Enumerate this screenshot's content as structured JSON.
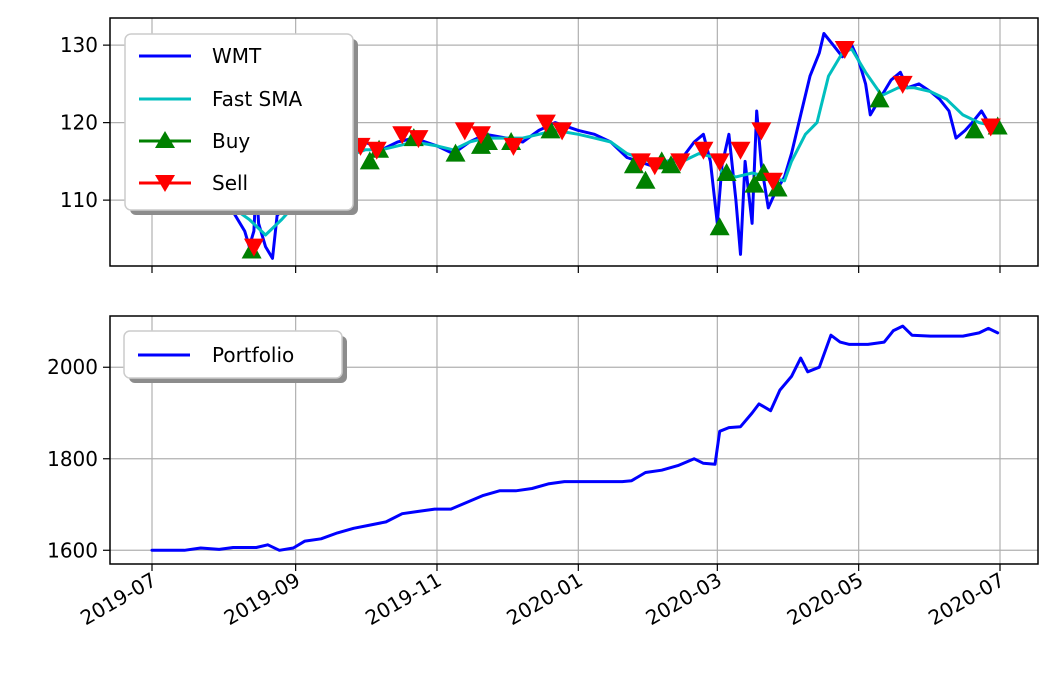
{
  "chart_data": [
    {
      "type": "line",
      "title": "",
      "xlabel": "",
      "ylabel": "",
      "ylim": [
        101.5,
        133.5
      ],
      "yticks": [
        110,
        120,
        130
      ],
      "grid": true,
      "legend_placement": "upper-left",
      "series": [
        {
          "name": "WMT",
          "color": "#0000ff",
          "points": [
            [
              "2019-07-01",
              108.5
            ],
            [
              "2019-07-08",
              110.5
            ],
            [
              "2019-07-15",
              112.0
            ],
            [
              "2019-07-22",
              112.5
            ],
            [
              "2019-07-29",
              111.0
            ],
            [
              "2019-08-05",
              108.5
            ],
            [
              "2019-08-10",
              106.0
            ],
            [
              "2019-08-12",
              104.0
            ],
            [
              "2019-08-14",
              106.0
            ],
            [
              "2019-08-15",
              112.5
            ],
            [
              "2019-08-16",
              107.0
            ],
            [
              "2019-08-19",
              104.0
            ],
            [
              "2019-08-22",
              102.5
            ],
            [
              "2019-08-24",
              108.0
            ],
            [
              "2019-08-27",
              109.0
            ],
            [
              "2019-09-01",
              111.0
            ],
            [
              "2019-09-08",
              113.5
            ],
            [
              "2019-09-15",
              115.5
            ],
            [
              "2019-09-22",
              116.5
            ],
            [
              "2019-10-01",
              117.5
            ],
            [
              "2019-10-08",
              116.5
            ],
            [
              "2019-10-15",
              117.5
            ],
            [
              "2019-10-22",
              118.0
            ],
            [
              "2019-11-01",
              117.0
            ],
            [
              "2019-11-08",
              116.0
            ],
            [
              "2019-11-15",
              117.5
            ],
            [
              "2019-11-22",
              118.5
            ],
            [
              "2019-12-01",
              118.0
            ],
            [
              "2019-12-08",
              117.5
            ],
            [
              "2019-12-15",
              119.0
            ],
            [
              "2019-12-22",
              120.0
            ],
            [
              "2020-01-01",
              119.0
            ],
            [
              "2020-01-08",
              118.5
            ],
            [
              "2020-01-15",
              117.5
            ],
            [
              "2020-01-22",
              115.5
            ],
            [
              "2020-02-01",
              114.5
            ],
            [
              "2020-02-08",
              115.0
            ],
            [
              "2020-02-15",
              115.5
            ],
            [
              "2020-02-20",
              117.5
            ],
            [
              "2020-02-24",
              118.5
            ],
            [
              "2020-02-27",
              115.0
            ],
            [
              "2020-03-01",
              107.0
            ],
            [
              "2020-03-03",
              114.5
            ],
            [
              "2020-03-06",
              118.5
            ],
            [
              "2020-03-09",
              110.0
            ],
            [
              "2020-03-11",
              103.0
            ],
            [
              "2020-03-13",
              115.0
            ],
            [
              "2020-03-16",
              107.0
            ],
            [
              "2020-03-18",
              121.5
            ],
            [
              "2020-03-20",
              114.5
            ],
            [
              "2020-03-23",
              109.0
            ],
            [
              "2020-03-26",
              111.0
            ],
            [
              "2020-03-30",
              113.0
            ],
            [
              "2020-04-02",
              116.0
            ],
            [
              "2020-04-06",
              121.0
            ],
            [
              "2020-04-10",
              126.0
            ],
            [
              "2020-04-14",
              129.0
            ],
            [
              "2020-04-16",
              131.5
            ],
            [
              "2020-04-20",
              130.0
            ],
            [
              "2020-04-24",
              128.5
            ],
            [
              "2020-04-28",
              130.0
            ],
            [
              "2020-05-01",
              128.0
            ],
            [
              "2020-05-04",
              125.0
            ],
            [
              "2020-05-06",
              121.0
            ],
            [
              "2020-05-11",
              123.5
            ],
            [
              "2020-05-15",
              125.5
            ],
            [
              "2020-05-19",
              126.5
            ],
            [
              "2020-05-22",
              124.5
            ],
            [
              "2020-05-27",
              125.0
            ],
            [
              "2020-06-01",
              124.0
            ],
            [
              "2020-06-05",
              123.0
            ],
            [
              "2020-06-09",
              121.5
            ],
            [
              "2020-06-12",
              118.0
            ],
            [
              "2020-06-16",
              119.0
            ],
            [
              "2020-06-19",
              120.0
            ],
            [
              "2020-06-23",
              121.5
            ],
            [
              "2020-06-26",
              120.0
            ],
            [
              "2020-06-30",
              119.5
            ]
          ]
        },
        {
          "name": "Fast SMA",
          "color": "#00bfbf",
          "points": [
            [
              "2019-07-01",
              110.0
            ],
            [
              "2019-07-15",
              111.0
            ],
            [
              "2019-07-29",
              110.5
            ],
            [
              "2019-08-05",
              109.0
            ],
            [
              "2019-08-12",
              107.5
            ],
            [
              "2019-08-19",
              105.5
            ],
            [
              "2019-08-26",
              107.5
            ],
            [
              "2019-09-01",
              109.5
            ],
            [
              "2019-09-08",
              112.5
            ],
            [
              "2019-09-15",
              114.5
            ],
            [
              "2019-09-22",
              115.5
            ],
            [
              "2019-10-01",
              116.5
            ],
            [
              "2019-10-08",
              116.5
            ],
            [
              "2019-10-15",
              117.0
            ],
            [
              "2019-10-22",
              117.5
            ],
            [
              "2019-11-01",
              117.0
            ],
            [
              "2019-11-08",
              116.5
            ],
            [
              "2019-11-15",
              117.5
            ],
            [
              "2019-11-22",
              118.0
            ],
            [
              "2019-12-01",
              118.0
            ],
            [
              "2019-12-08",
              118.0
            ],
            [
              "2019-12-15",
              118.5
            ],
            [
              "2019-12-22",
              119.0
            ],
            [
              "2020-01-01",
              118.5
            ],
            [
              "2020-01-08",
              118.0
            ],
            [
              "2020-01-15",
              117.5
            ],
            [
              "2020-01-22",
              116.0
            ],
            [
              "2020-02-01",
              115.0
            ],
            [
              "2020-02-08",
              115.0
            ],
            [
              "2020-02-15",
              115.0
            ],
            [
              "2020-02-22",
              116.0
            ],
            [
              "2020-02-29",
              115.5
            ],
            [
              "2020-03-03",
              113.5
            ],
            [
              "2020-03-09",
              113.0
            ],
            [
              "2020-03-16",
              113.5
            ],
            [
              "2020-03-23",
              113.0
            ],
            [
              "2020-03-30",
              112.5
            ],
            [
              "2020-04-02",
              115.0
            ],
            [
              "2020-04-08",
              118.5
            ],
            [
              "2020-04-13",
              120.0
            ],
            [
              "2020-04-18",
              126.0
            ],
            [
              "2020-04-24",
              129.0
            ],
            [
              "2020-04-28",
              129.5
            ],
            [
              "2020-05-04",
              126.5
            ],
            [
              "2020-05-11",
              123.5
            ],
            [
              "2020-05-18",
              124.5
            ],
            [
              "2020-05-25",
              124.5
            ],
            [
              "2020-06-01",
              124.0
            ],
            [
              "2020-06-08",
              123.0
            ],
            [
              "2020-06-15",
              121.0
            ],
            [
              "2020-06-22",
              120.0
            ],
            [
              "2020-06-30",
              119.5
            ]
          ]
        }
      ],
      "markers": [
        {
          "name": "Buy",
          "color": "#008000",
          "shape": "triangle-up",
          "points": [
            [
              "2019-08-13",
              103.5
            ],
            [
              "2019-10-03",
              115.0
            ],
            [
              "2019-10-07",
              116.5
            ],
            [
              "2019-10-22",
              118.0
            ],
            [
              "2019-11-09",
              116.0
            ],
            [
              "2019-11-20",
              117.0
            ],
            [
              "2019-11-23",
              117.5
            ],
            [
              "2019-12-03",
              117.5
            ],
            [
              "2019-12-20",
              119.0
            ],
            [
              "2020-01-25",
              114.5
            ],
            [
              "2020-01-30",
              112.5
            ],
            [
              "2020-02-06",
              115.0
            ],
            [
              "2020-02-10",
              114.5
            ],
            [
              "2020-03-02",
              106.5
            ],
            [
              "2020-03-05",
              113.5
            ],
            [
              "2020-03-17",
              112.0
            ],
            [
              "2020-03-21",
              113.5
            ],
            [
              "2020-03-27",
              111.5
            ],
            [
              "2020-05-10",
              123.0
            ],
            [
              "2020-06-20",
              119.0
            ],
            [
              "2020-06-30",
              119.5
            ]
          ]
        },
        {
          "name": "Sell",
          "color": "#ff0000",
          "shape": "triangle-down",
          "points": [
            [
              "2019-08-14",
              104.0
            ],
            [
              "2019-09-29",
              117.0
            ],
            [
              "2019-10-06",
              116.5
            ],
            [
              "2019-10-17",
              118.5
            ],
            [
              "2019-10-24",
              118.0
            ],
            [
              "2019-11-13",
              119.0
            ],
            [
              "2019-11-20",
              118.5
            ],
            [
              "2019-12-04",
              117.0
            ],
            [
              "2019-12-18",
              120.0
            ],
            [
              "2019-12-25",
              119.0
            ],
            [
              "2020-01-28",
              115.0
            ],
            [
              "2020-02-03",
              114.5
            ],
            [
              "2020-02-14",
              115.0
            ],
            [
              "2020-02-24",
              116.5
            ],
            [
              "2020-03-02",
              115.0
            ],
            [
              "2020-03-11",
              116.5
            ],
            [
              "2020-03-20",
              119.0
            ],
            [
              "2020-03-25",
              112.5
            ],
            [
              "2020-04-25",
              129.5
            ],
            [
              "2020-05-20",
              125.0
            ],
            [
              "2020-06-27",
              119.5
            ]
          ]
        }
      ]
    },
    {
      "type": "line",
      "title": "",
      "xlabel": "",
      "ylabel": "",
      "ylim": [
        1570,
        2112
      ],
      "yticks": [
        1600,
        1800,
        2000
      ],
      "xticks": [
        "2019-07",
        "2019-09",
        "2019-11",
        "2020-01",
        "2020-03",
        "2020-05",
        "2020-07"
      ],
      "grid": true,
      "legend_placement": "upper-left",
      "series": [
        {
          "name": "Portfolio",
          "color": "#0000ff",
          "points": [
            [
              "2019-07-01",
              1600
            ],
            [
              "2019-07-15",
              1600
            ],
            [
              "2019-07-22",
              1605
            ],
            [
              "2019-07-30",
              1602
            ],
            [
              "2019-08-05",
              1606
            ],
            [
              "2019-08-15",
              1606
            ],
            [
              "2019-08-20",
              1612
            ],
            [
              "2019-08-25",
              1600
            ],
            [
              "2019-08-31",
              1605
            ],
            [
              "2019-09-05",
              1620
            ],
            [
              "2019-09-12",
              1625
            ],
            [
              "2019-09-19",
              1638
            ],
            [
              "2019-09-26",
              1648
            ],
            [
              "2019-10-03",
              1655
            ],
            [
              "2019-10-10",
              1662
            ],
            [
              "2019-10-17",
              1680
            ],
            [
              "2019-10-24",
              1685
            ],
            [
              "2019-10-31",
              1690
            ],
            [
              "2019-11-07",
              1690
            ],
            [
              "2019-11-14",
              1705
            ],
            [
              "2019-11-21",
              1720
            ],
            [
              "2019-11-28",
              1730
            ],
            [
              "2019-12-05",
              1730
            ],
            [
              "2019-12-12",
              1735
            ],
            [
              "2019-12-19",
              1745
            ],
            [
              "2019-12-26",
              1750
            ],
            [
              "2020-01-05",
              1750
            ],
            [
              "2020-01-20",
              1750
            ],
            [
              "2020-01-24",
              1752
            ],
            [
              "2020-01-30",
              1770
            ],
            [
              "2020-02-06",
              1775
            ],
            [
              "2020-02-13",
              1785
            ],
            [
              "2020-02-20",
              1800
            ],
            [
              "2020-02-24",
              1790
            ],
            [
              "2020-02-29",
              1788
            ],
            [
              "2020-03-02",
              1860
            ],
            [
              "2020-03-06",
              1868
            ],
            [
              "2020-03-11",
              1870
            ],
            [
              "2020-03-16",
              1900
            ],
            [
              "2020-03-19",
              1920
            ],
            [
              "2020-03-24",
              1905
            ],
            [
              "2020-03-28",
              1950
            ],
            [
              "2020-04-02",
              1980
            ],
            [
              "2020-04-06",
              2020
            ],
            [
              "2020-04-09",
              1990
            ],
            [
              "2020-04-14",
              2000
            ],
            [
              "2020-04-19",
              2070
            ],
            [
              "2020-04-23",
              2055
            ],
            [
              "2020-04-27",
              2050
            ],
            [
              "2020-05-05",
              2050
            ],
            [
              "2020-05-12",
              2055
            ],
            [
              "2020-05-16",
              2080
            ],
            [
              "2020-05-20",
              2090
            ],
            [
              "2020-05-24",
              2070
            ],
            [
              "2020-06-01",
              2068
            ],
            [
              "2020-06-15",
              2068
            ],
            [
              "2020-06-22",
              2075
            ],
            [
              "2020-06-26",
              2085
            ],
            [
              "2020-06-30",
              2075
            ]
          ]
        }
      ]
    }
  ]
}
